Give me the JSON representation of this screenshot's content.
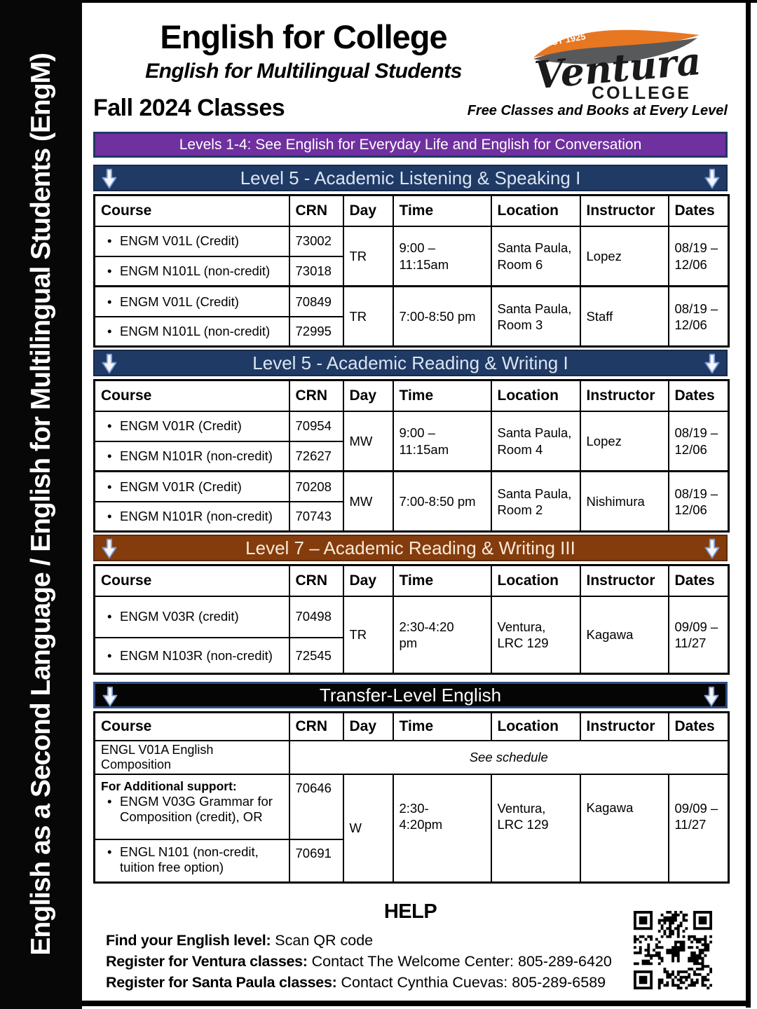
{
  "sidebar": {
    "text": "English as a Second Language /  English for Multilingual Students (EngM)"
  },
  "header": {
    "title": "English for College",
    "subtitle": "English for Multilingual Students",
    "term": "Fall 2024 Classes",
    "tagline": "Free Classes and Books at Every Level",
    "logo": {
      "est": "EST 1925",
      "name": "Ventura",
      "college": "COLLEGE"
    }
  },
  "notice_banner": {
    "text": "Levels 1-4: See English for Everyday Life and English for Conversation",
    "color": "#7030a0"
  },
  "columns": [
    "Course",
    "CRN",
    "Day",
    "Time",
    "Location",
    "Instructor",
    "Dates"
  ],
  "colors": {
    "navy": "#203a66",
    "purple": "#7030a0",
    "brown": "#843c0c",
    "black": "#050505"
  },
  "sections": [
    {
      "title": "Level 5 - Academic Listening & Speaking I",
      "groups": [
        {
          "rows": [
            {
              "course": "ENGM V01L (Credit)",
              "crn": "73002"
            },
            {
              "course": "ENGM N101L (non-credit)",
              "crn": "73018"
            }
          ],
          "day": "TR",
          "time": "9:00 –\n11:15am",
          "location": "Santa Paula,\nRoom 6",
          "instructor": "Lopez",
          "dates": "08/19 –\n12/06"
        },
        {
          "rows": [
            {
              "course": "ENGM V01L (Credit)",
              "crn": "70849"
            },
            {
              "course": "ENGM N101L (non-credit)",
              "crn": "72995"
            }
          ],
          "day": "TR",
          "time": "7:00-8:50 pm",
          "location": "Santa Paula,\nRoom 3",
          "instructor": "Staff",
          "dates": "08/19 –\n12/06"
        }
      ]
    },
    {
      "title": "Level 5 - Academic Reading & Writing I",
      "groups": [
        {
          "rows": [
            {
              "course": "ENGM V01R (Credit)",
              "crn": "70954"
            },
            {
              "course": "ENGM N101R (non-credit)",
              "crn": "72627"
            }
          ],
          "day": "MW",
          "time": "9:00 –\n11:15am",
          "location": "Santa Paula,\nRoom 4",
          "instructor": "Lopez",
          "dates": "08/19 –\n12/06"
        },
        {
          "rows": [
            {
              "course": "ENGM V01R (Credit)",
              "crn": "70208"
            },
            {
              "course": "ENGM N101R (non-credit)",
              "crn": "70743"
            }
          ],
          "day": "MW",
          "time": "7:00-8:50 pm",
          "location": "Santa Paula,\nRoom 2",
          "instructor": "Nishimura",
          "dates": "08/19 –\n12/06"
        }
      ]
    },
    {
      "title": "Level 7 – Academic Reading & Writing III",
      "groups": [
        {
          "rows": [
            {
              "course": "ENGM V03R (credit)",
              "crn": "70498"
            },
            {
              "course": "ENGM N103R (non-credit)",
              "crn": "72545"
            }
          ],
          "day": "TR",
          "time": "2:30-4:20\npm",
          "location": "Ventura,\nLRC 129",
          "instructor": "Kagawa",
          "dates": "09/09 –\n11/27"
        }
      ]
    }
  ],
  "transfer": {
    "title": "Transfer-Level English",
    "composition_row": {
      "course": "ENGL V01A English Composition",
      "note": "See schedule"
    },
    "support": {
      "heading": "For Additional support:",
      "items": [
        {
          "course": "ENGM V03G Grammar for Composition (credit), OR",
          "crn": "70646"
        },
        {
          "course": "ENGL N101 (non-credit, tuition free option)",
          "crn": "70691"
        }
      ],
      "day": "W",
      "time": "2:30-\n4:20pm",
      "location": "Ventura,\nLRC 129",
      "instructor": "Kagawa",
      "dates": "09/09 –\n11/27"
    }
  },
  "help": {
    "title": "HELP",
    "items": [
      {
        "label": "Find your English level:",
        "text": " Scan QR code"
      },
      {
        "label": "Register for Ventura classes:",
        "text": " Contact The Welcome Center: 805-289-6420"
      },
      {
        "label": "Register for Santa Paula classes:",
        "text": " Contact Cynthia Cuevas: 805-289-6589"
      }
    ]
  }
}
